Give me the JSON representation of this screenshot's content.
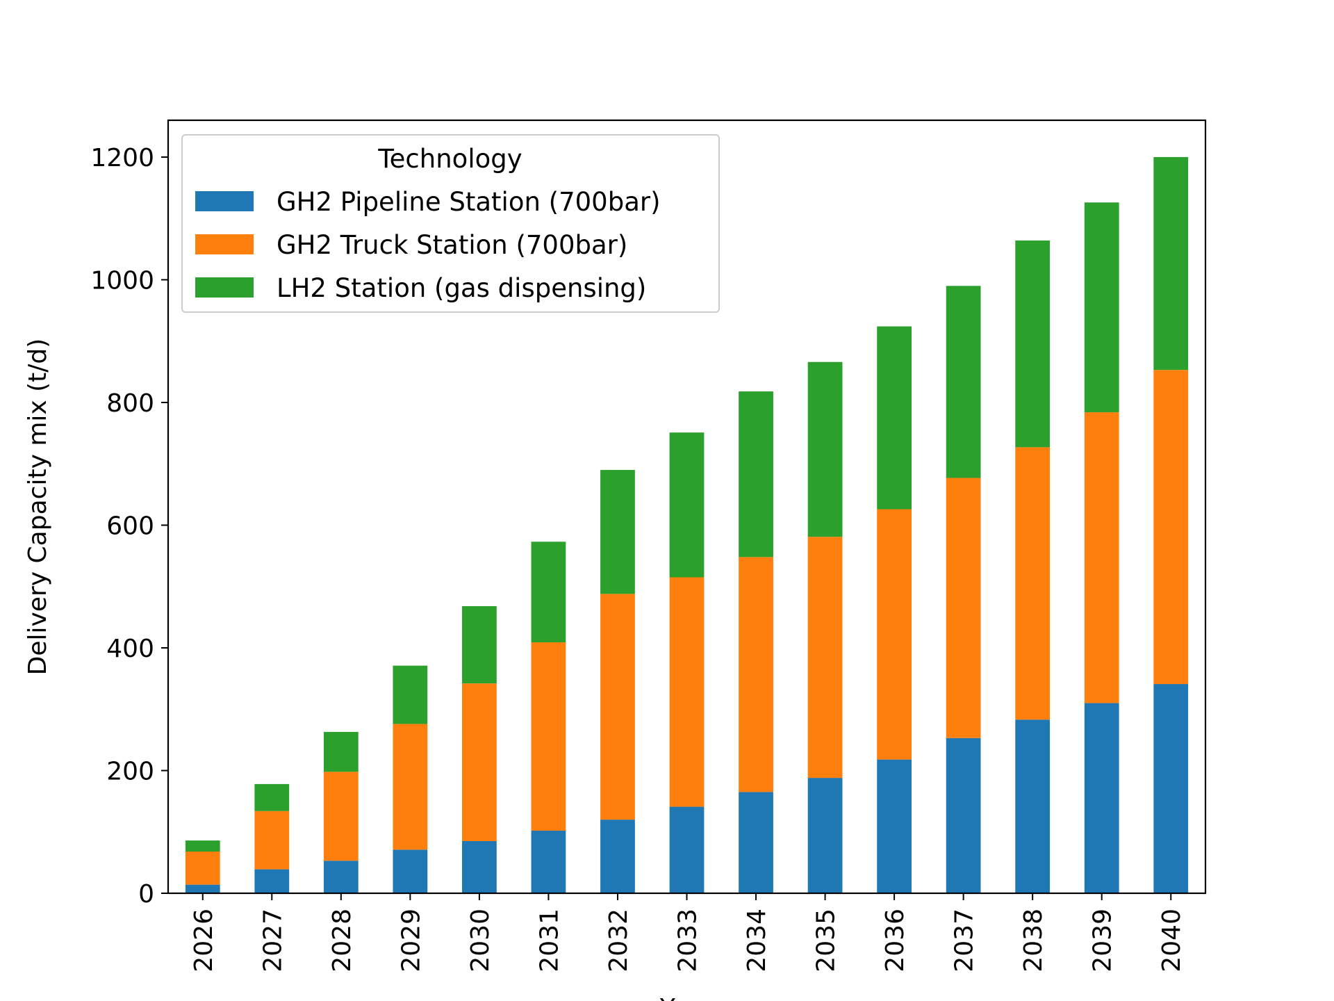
{
  "chart_data": {
    "type": "bar",
    "stacked": true,
    "categories": [
      "2026",
      "2027",
      "2028",
      "2029",
      "2030",
      "2031",
      "2032",
      "2033",
      "2034",
      "2035",
      "2036",
      "2037",
      "2038",
      "2039",
      "2040"
    ],
    "series": [
      {
        "name": "GH2 Pipeline Station (700bar)",
        "color": "#1f77b4",
        "values": [
          14,
          39,
          53,
          71,
          85,
          102,
          120,
          141,
          165,
          188,
          218,
          253,
          283,
          310,
          341
        ]
      },
      {
        "name": "GH2 Truck Station (700bar)",
        "color": "#ff7f0e",
        "values": [
          54,
          95,
          145,
          205,
          257,
          307,
          368,
          374,
          383,
          393,
          408,
          424,
          444,
          474,
          512
        ]
      },
      {
        "name": "LH2 Station (gas dispensing)",
        "color": "#2ca02c",
        "values": [
          18,
          44,
          65,
          95,
          126,
          164,
          202,
          236,
          270,
          285,
          298,
          313,
          337,
          342,
          347
        ]
      }
    ],
    "xlabel": "Year",
    "ylabel": "Delivery Capacity mix (t/d)",
    "ylim": [
      0,
      1260
    ],
    "yticks": [
      0,
      200,
      400,
      600,
      800,
      1000,
      1200
    ],
    "legend": {
      "title": "Technology",
      "position": "top-left"
    },
    "grid": false
  }
}
